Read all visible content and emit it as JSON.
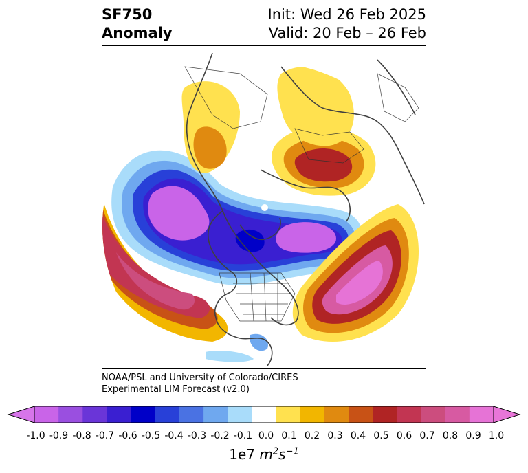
{
  "title": {
    "variable": "SF750",
    "kind": "Anomaly",
    "init": "Init: Wed 26 Feb 2025",
    "valid": "Valid: 20 Feb – 26 Feb"
  },
  "credits": {
    "line1": "NOAA/PSL and University of Colorado/CIRES",
    "line2": "Experimental LIM Forecast (v2.0)"
  },
  "colorbar": {
    "label_prefix": "1e7",
    "label_units": "m",
    "label_units_exp1": "2",
    "label_units_s": "s",
    "label_units_exp2": "−1",
    "ticks": [
      "-1.0",
      "-0.9",
      "-0.8",
      "-0.7",
      "-0.6",
      "-0.5",
      "-0.4",
      "-0.3",
      "-0.2",
      "-0.1",
      "0.0",
      "0.1",
      "0.2",
      "0.3",
      "0.4",
      "0.5",
      "0.6",
      "0.7",
      "0.8",
      "0.9",
      "1.0"
    ],
    "colors": [
      "#c964e8",
      "#9a4fe0",
      "#6a35d8",
      "#3a1fd1",
      "#0000c8",
      "#2840d8",
      "#4a72e3",
      "#6fa8ef",
      "#a9dcfa",
      "#ffffff",
      "#ffe14f",
      "#f2b600",
      "#e08a10",
      "#c85216",
      "#b02424",
      "#c23552",
      "#cc4d7e",
      "#d75aa2",
      "#e673d6"
    ],
    "min_color": "#d775ea",
    "max_color": "#e876d8"
  },
  "map": {
    "projection": "north-polar-stereographic",
    "field": "750 hPa streamfunction anomaly",
    "features": [
      "coastlines",
      "country-borders",
      "us-state-borders",
      "north-pole-marker"
    ]
  }
}
